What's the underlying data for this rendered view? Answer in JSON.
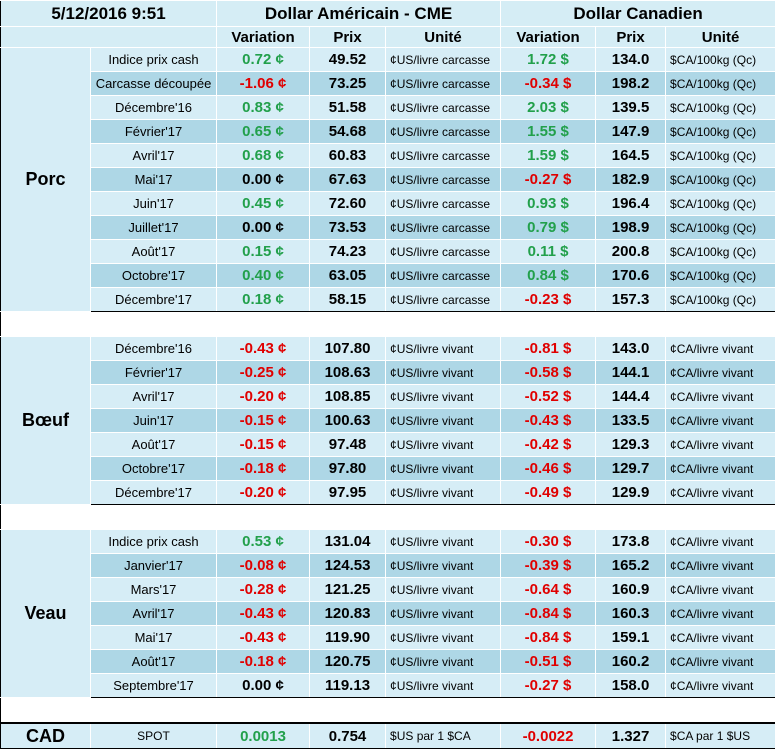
{
  "header": {
    "date": "5/12/2016 9:51",
    "us_title": "Dollar Américain - CME",
    "ca_title": "Dollar Canadien",
    "col_variation": "Variation",
    "col_prix": "Prix",
    "col_unite": "Unité"
  },
  "groups": [
    {
      "name": "Porc",
      "rows": [
        {
          "label": "Indice prix cash",
          "us_var": "0.72 ¢",
          "us_sign": "pos",
          "us_price": "49.52",
          "us_unit": "¢US/livre carcasse",
          "ca_var": "1.72 $",
          "ca_sign": "pos",
          "ca_price": "134.0",
          "ca_unit": "$CA/100kg (Qc)"
        },
        {
          "label": "Carcasse découpée",
          "us_var": "-1.06 ¢",
          "us_sign": "neg",
          "us_price": "73.25",
          "us_unit": "¢US/livre carcasse",
          "ca_var": "-0.34 $",
          "ca_sign": "neg",
          "ca_price": "198.2",
          "ca_unit": "$CA/100kg (Qc)"
        },
        {
          "label": "Décembre'16",
          "us_var": "0.83 ¢",
          "us_sign": "pos",
          "us_price": "51.58",
          "us_unit": "¢US/livre carcasse",
          "ca_var": "2.03 $",
          "ca_sign": "pos",
          "ca_price": "139.5",
          "ca_unit": "$CA/100kg (Qc)"
        },
        {
          "label": "Février'17",
          "us_var": "0.65 ¢",
          "us_sign": "pos",
          "us_price": "54.68",
          "us_unit": "¢US/livre carcasse",
          "ca_var": "1.55 $",
          "ca_sign": "pos",
          "ca_price": "147.9",
          "ca_unit": "$CA/100kg (Qc)"
        },
        {
          "label": "Avril'17",
          "us_var": "0.68 ¢",
          "us_sign": "pos",
          "us_price": "60.83",
          "us_unit": "¢US/livre carcasse",
          "ca_var": "1.59 $",
          "ca_sign": "pos",
          "ca_price": "164.5",
          "ca_unit": "$CA/100kg (Qc)"
        },
        {
          "label": "Mai'17",
          "us_var": "0.00 ¢",
          "us_sign": "zero",
          "us_price": "67.63",
          "us_unit": "¢US/livre carcasse",
          "ca_var": "-0.27 $",
          "ca_sign": "neg",
          "ca_price": "182.9",
          "ca_unit": "$CA/100kg (Qc)"
        },
        {
          "label": "Juin'17",
          "us_var": "0.45 ¢",
          "us_sign": "pos",
          "us_price": "72.60",
          "us_unit": "¢US/livre carcasse",
          "ca_var": "0.93 $",
          "ca_sign": "pos",
          "ca_price": "196.4",
          "ca_unit": "$CA/100kg (Qc)"
        },
        {
          "label": "Juillet'17",
          "us_var": "0.00 ¢",
          "us_sign": "zero",
          "us_price": "73.53",
          "us_unit": "¢US/livre carcasse",
          "ca_var": "0.79 $",
          "ca_sign": "pos",
          "ca_price": "198.9",
          "ca_unit": "$CA/100kg (Qc)"
        },
        {
          "label": "Août'17",
          "us_var": "0.15 ¢",
          "us_sign": "pos",
          "us_price": "74.23",
          "us_unit": "¢US/livre carcasse",
          "ca_var": "0.11 $",
          "ca_sign": "pos",
          "ca_price": "200.8",
          "ca_unit": "$CA/100kg (Qc)"
        },
        {
          "label": "Octobre'17",
          "us_var": "0.40 ¢",
          "us_sign": "pos",
          "us_price": "63.05",
          "us_unit": "¢US/livre carcasse",
          "ca_var": "0.84 $",
          "ca_sign": "pos",
          "ca_price": "170.6",
          "ca_unit": "$CA/100kg (Qc)"
        },
        {
          "label": "Décembre'17",
          "us_var": "0.18 ¢",
          "us_sign": "pos",
          "us_price": "58.15",
          "us_unit": "¢US/livre carcasse",
          "ca_var": "-0.23 $",
          "ca_sign": "neg",
          "ca_price": "157.3",
          "ca_unit": "$CA/100kg (Qc)"
        }
      ]
    },
    {
      "name": "Bœuf",
      "rows": [
        {
          "label": "Décembre'16",
          "us_var": "-0.43 ¢",
          "us_sign": "neg",
          "us_price": "107.80",
          "us_unit": "¢US/livre vivant",
          "ca_var": "-0.81 $",
          "ca_sign": "neg",
          "ca_price": "143.0",
          "ca_unit": "¢CA/livre vivant"
        },
        {
          "label": "Février'17",
          "us_var": "-0.25 ¢",
          "us_sign": "neg",
          "us_price": "108.63",
          "us_unit": "¢US/livre vivant",
          "ca_var": "-0.58 $",
          "ca_sign": "neg",
          "ca_price": "144.1",
          "ca_unit": "¢CA/livre vivant"
        },
        {
          "label": "Avril'17",
          "us_var": "-0.20 ¢",
          "us_sign": "neg",
          "us_price": "108.85",
          "us_unit": "¢US/livre vivant",
          "ca_var": "-0.52 $",
          "ca_sign": "neg",
          "ca_price": "144.4",
          "ca_unit": "¢CA/livre vivant"
        },
        {
          "label": "Juin'17",
          "us_var": "-0.15 ¢",
          "us_sign": "neg",
          "us_price": "100.63",
          "us_unit": "¢US/livre vivant",
          "ca_var": "-0.43 $",
          "ca_sign": "neg",
          "ca_price": "133.5",
          "ca_unit": "¢CA/livre vivant"
        },
        {
          "label": "Août'17",
          "us_var": "-0.15 ¢",
          "us_sign": "neg",
          "us_price": "97.48",
          "us_unit": "¢US/livre vivant",
          "ca_var": "-0.42 $",
          "ca_sign": "neg",
          "ca_price": "129.3",
          "ca_unit": "¢CA/livre vivant"
        },
        {
          "label": "Octobre'17",
          "us_var": "-0.18 ¢",
          "us_sign": "neg",
          "us_price": "97.80",
          "us_unit": "¢US/livre vivant",
          "ca_var": "-0.46 $",
          "ca_sign": "neg",
          "ca_price": "129.7",
          "ca_unit": "¢CA/livre vivant"
        },
        {
          "label": "Décembre'17",
          "us_var": "-0.20 ¢",
          "us_sign": "neg",
          "us_price": "97.95",
          "us_unit": "¢US/livre vivant",
          "ca_var": "-0.49 $",
          "ca_sign": "neg",
          "ca_price": "129.9",
          "ca_unit": "¢CA/livre vivant"
        }
      ]
    },
    {
      "name": "Veau",
      "rows": [
        {
          "label": "Indice prix cash",
          "us_var": "0.53 ¢",
          "us_sign": "pos",
          "us_price": "131.04",
          "us_unit": "¢US/livre vivant",
          "ca_var": "-0.30 $",
          "ca_sign": "neg",
          "ca_price": "173.8",
          "ca_unit": "¢CA/livre vivant"
        },
        {
          "label": "Janvier'17",
          "us_var": "-0.08 ¢",
          "us_sign": "neg",
          "us_price": "124.53",
          "us_unit": "¢US/livre vivant",
          "ca_var": "-0.39 $",
          "ca_sign": "neg",
          "ca_price": "165.2",
          "ca_unit": "¢CA/livre vivant"
        },
        {
          "label": "Mars'17",
          "us_var": "-0.28 ¢",
          "us_sign": "neg",
          "us_price": "121.25",
          "us_unit": "¢US/livre vivant",
          "ca_var": "-0.64 $",
          "ca_sign": "neg",
          "ca_price": "160.9",
          "ca_unit": "¢CA/livre vivant"
        },
        {
          "label": "Avril'17",
          "us_var": "-0.43 ¢",
          "us_sign": "neg",
          "us_price": "120.83",
          "us_unit": "¢US/livre vivant",
          "ca_var": "-0.84 $",
          "ca_sign": "neg",
          "ca_price": "160.3",
          "ca_unit": "¢CA/livre vivant"
        },
        {
          "label": "Mai'17",
          "us_var": "-0.43 ¢",
          "us_sign": "neg",
          "us_price": "119.90",
          "us_unit": "¢US/livre vivant",
          "ca_var": "-0.84 $",
          "ca_sign": "neg",
          "ca_price": "159.1",
          "ca_unit": "¢CA/livre vivant"
        },
        {
          "label": "Août'17",
          "us_var": "-0.18 ¢",
          "us_sign": "neg",
          "us_price": "120.75",
          "us_unit": "¢US/livre vivant",
          "ca_var": "-0.51 $",
          "ca_sign": "neg",
          "ca_price": "160.2",
          "ca_unit": "¢CA/livre vivant"
        },
        {
          "label": "Septembre'17",
          "us_var": "0.00 ¢",
          "us_sign": "zero",
          "us_price": "119.13",
          "us_unit": "¢US/livre vivant",
          "ca_var": "-0.27 $",
          "ca_sign": "neg",
          "ca_price": "158.0",
          "ca_unit": "¢CA/livre vivant"
        }
      ]
    }
  ],
  "cad": {
    "name": "CAD",
    "label": "SPOT",
    "us_var": "0.0013",
    "us_sign": "pos",
    "us_price": "0.754",
    "us_unit": "$US par 1 $CA",
    "ca_var": "-0.0022",
    "ca_sign": "neg",
    "ca_price": "1.327",
    "ca_unit": "$CA par 1 $US"
  },
  "colors": {
    "positive": "#22a04b",
    "negative": "#e00000",
    "band_light": "#d6edf6",
    "band_dark": "#aed7e6"
  }
}
